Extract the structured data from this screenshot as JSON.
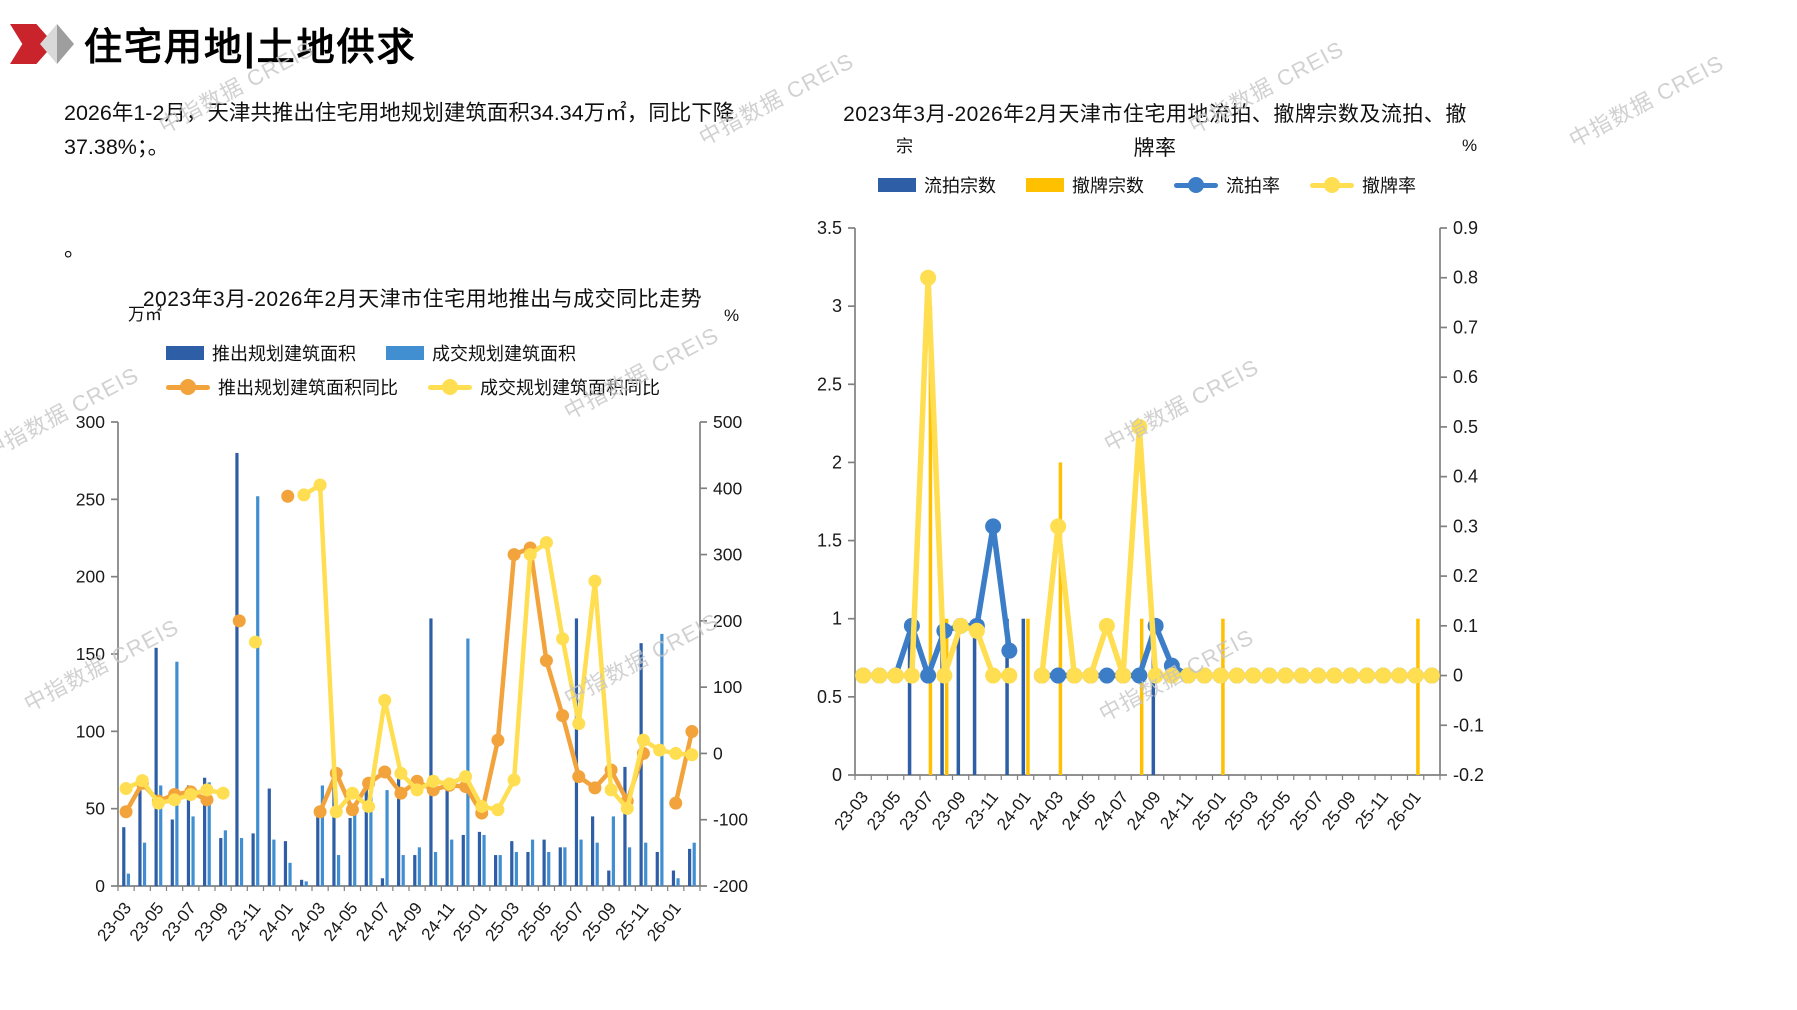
{
  "page_title": "住宅用地|土地供求",
  "bullets": {
    "b1": "2026年1-2月，天津共推出住宅用地规划建筑面积34.34万㎡，同比下降37.38%；。",
    "b2": "。"
  },
  "watermark": "中指数据 CREIS",
  "colors": {
    "accent_red": "#c9242b",
    "bar_dark_blue": "#2e5ea6",
    "bar_light_blue": "#418fd0",
    "bar_yellow": "#ffc000",
    "line_orange": "#f2a33c",
    "line_yellow": "#ffde52",
    "line_blue": "#3c7dc8",
    "axis_gray": "#808080"
  },
  "chart_data": [
    {
      "type": "bar+line",
      "title": "2023年3月-2026年2月天津市住宅用地推出与成交同比走势",
      "left_axis_label": "万㎡",
      "right_axis_label": "%",
      "left_range": [
        0,
        300
      ],
      "right_range": [
        -200,
        500
      ],
      "left_ticks": [
        0,
        50,
        100,
        150,
        200,
        250,
        300
      ],
      "right_ticks": [
        -200,
        -100,
        0,
        100,
        200,
        300,
        400,
        500
      ],
      "label_every": 2,
      "categories": [
        "23-03",
        "23-04",
        "23-05",
        "23-06",
        "23-07",
        "23-08",
        "23-09",
        "23-10",
        "23-11",
        "23-12",
        "24-01",
        "24-02",
        "24-03",
        "24-04",
        "24-05",
        "24-06",
        "24-07",
        "24-08",
        "24-09",
        "24-10",
        "24-11",
        "24-12",
        "25-01",
        "25-02",
        "25-03",
        "25-04",
        "25-05",
        "25-06",
        "25-07",
        "25-08",
        "25-09",
        "25-10",
        "25-11",
        "25-12",
        "26-01",
        "26-02"
      ],
      "series": [
        {
          "name": "推出规划建筑面积",
          "type": "bar",
          "axis": "left",
          "color": "#2e5ea6",
          "values": [
            38,
            62,
            154,
            43,
            65,
            70,
            31,
            280,
            34,
            63,
            29,
            4,
            48,
            65,
            44,
            66,
            5,
            70,
            20,
            173,
            62,
            33,
            35,
            20,
            29,
            22,
            30,
            25,
            173,
            45,
            10,
            77,
            157,
            22,
            10,
            24
          ]
        },
        {
          "name": "成交规划建筑面积",
          "type": "bar",
          "axis": "left",
          "color": "#418fd0",
          "values": [
            8,
            28,
            65,
            145,
            45,
            67,
            36,
            31,
            252,
            30,
            15,
            3,
            65,
            20,
            46,
            60,
            62,
            20,
            25,
            22,
            30,
            160,
            33,
            20,
            22,
            30,
            22,
            25,
            30,
            28,
            45,
            25,
            28,
            163,
            5,
            28
          ]
        },
        {
          "name": "推出规划建筑面积同比",
          "type": "line",
          "axis": "right",
          "color": "#f2a33c",
          "values": [
            -88,
            -45,
            -72,
            -62,
            -58,
            -70,
            null,
            200,
            null,
            null,
            388,
            null,
            -88,
            -30,
            -85,
            -45,
            -28,
            -60,
            -42,
            -55,
            -48,
            -50,
            -90,
            20,
            300,
            310,
            140,
            57,
            -35,
            -52,
            -25,
            -72,
            0,
            null,
            -75,
            33
          ]
        },
        {
          "name": "成交规划建筑面积同比",
          "type": "line",
          "axis": "right",
          "color": "#ffde52",
          "values": [
            -53,
            -41,
            -75,
            -70,
            -62,
            -55,
            -60,
            null,
            168,
            null,
            null,
            390,
            405,
            -88,
            -60,
            -80,
            80,
            -30,
            -55,
            -42,
            -46,
            -35,
            -80,
            -85,
            -40,
            300,
            318,
            173,
            45,
            260,
            -55,
            -83,
            20,
            5,
            0,
            -2
          ]
        }
      ]
    },
    {
      "type": "bar+line",
      "title": "2023年3月-2026年2月天津市住宅用地流拍、撤牌宗数及流拍、撤牌率",
      "title_line1": "2023年3月-2026年2月天津市住宅用地流拍、撤牌宗数及流拍、撤",
      "title_line2": "牌率",
      "left_axis_label": "宗",
      "right_axis_label": "%",
      "left_range": [
        0,
        3.5
      ],
      "right_range": [
        -0.2,
        0.9
      ],
      "left_ticks": [
        0,
        0.5,
        1,
        1.5,
        2,
        2.5,
        3,
        3.5
      ],
      "right_ticks": [
        -0.2,
        -0.1,
        0,
        0.1,
        0.2,
        0.3,
        0.4,
        0.5,
        0.6,
        0.7,
        0.8,
        0.9
      ],
      "label_every": 2,
      "categories": [
        "23-03",
        "23-04",
        "23-05",
        "23-06",
        "23-07",
        "23-08",
        "23-09",
        "23-10",
        "23-11",
        "23-12",
        "24-01",
        "24-02",
        "24-03",
        "24-04",
        "24-05",
        "24-06",
        "24-07",
        "24-08",
        "24-09",
        "24-10",
        "24-11",
        "24-12",
        "25-01",
        "25-02",
        "25-03",
        "25-04",
        "25-05",
        "25-06",
        "25-07",
        "25-08",
        "25-09",
        "25-10",
        "25-11",
        "25-12",
        "26-01",
        "26-02"
      ],
      "series": [
        {
          "name": "流拍宗数",
          "type": "bar",
          "axis": "left",
          "color": "#2e5ea6",
          "values": [
            0,
            0,
            0,
            1,
            0,
            1,
            1,
            1,
            0,
            1,
            1,
            0,
            0,
            0,
            0,
            0,
            0,
            0,
            1,
            0,
            0,
            0,
            0,
            0,
            0,
            0,
            0,
            0,
            0,
            0,
            0,
            0,
            0,
            0,
            0,
            0
          ]
        },
        {
          "name": "撤牌宗数",
          "type": "bar",
          "axis": "left",
          "color": "#ffc000",
          "values": [
            0,
            0,
            0,
            0,
            3,
            1,
            0,
            0,
            0,
            0,
            1,
            0,
            2,
            0,
            0,
            0,
            0,
            1,
            0,
            0,
            0,
            0,
            1,
            0,
            0,
            0,
            0,
            0,
            0,
            0,
            0,
            0,
            0,
            0,
            1,
            0
          ]
        },
        {
          "name": "流拍率",
          "type": "line",
          "axis": "right",
          "color": "#3c7dc8",
          "values": [
            0,
            0,
            0,
            0.1,
            0,
            0.09,
            0.1,
            0.1,
            0.3,
            0.05,
            null,
            0,
            0,
            0,
            0,
            0,
            0,
            0,
            0.1,
            0.02,
            0,
            0,
            0,
            0,
            0,
            0,
            0,
            0,
            0,
            0,
            0,
            0,
            0,
            0,
            0,
            0
          ]
        },
        {
          "name": "撤牌率",
          "type": "line",
          "axis": "right",
          "color": "#ffde52",
          "values": [
            0,
            0,
            0,
            0,
            0.8,
            0,
            0.1,
            0.09,
            0,
            0,
            null,
            0,
            0.3,
            0,
            0,
            0.1,
            0,
            0.5,
            0,
            0,
            0,
            0,
            0,
            0,
            0,
            0,
            0,
            0,
            0,
            0,
            0,
            0,
            0,
            0,
            0,
            0
          ]
        }
      ]
    }
  ]
}
